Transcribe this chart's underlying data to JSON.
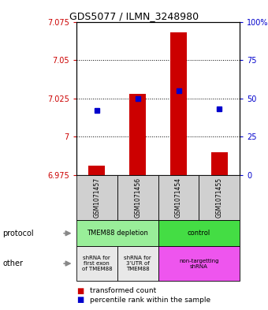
{
  "title": "GDS5077 / ILMN_3248980",
  "samples": [
    "GSM1071457",
    "GSM1071456",
    "GSM1071454",
    "GSM1071455"
  ],
  "red_values": [
    6.981,
    7.028,
    7.068,
    6.99
  ],
  "red_base": 6.975,
  "blue_values": [
    42,
    50,
    55,
    43
  ],
  "ylim": [
    6.975,
    7.075
  ],
  "yticks": [
    6.975,
    7.0,
    7.025,
    7.05,
    7.075
  ],
  "ytick_labels": [
    "6.975",
    "7",
    "7.025",
    "7.05",
    "7.075"
  ],
  "y2ticks": [
    0,
    25,
    50,
    75,
    100
  ],
  "y2tick_labels": [
    "0",
    "25",
    "50",
    "75",
    "100%"
  ],
  "red_color": "#cc0000",
  "blue_color": "#0000cc",
  "grid_dotted_at": [
    7.0,
    7.025,
    7.05
  ],
  "protocol_groups": [
    {
      "start": 0,
      "end": 2,
      "color": "#99ee99",
      "label": "TMEM88 depletion"
    },
    {
      "start": 2,
      "end": 4,
      "color": "#44dd44",
      "label": "control"
    }
  ],
  "other_groups": [
    {
      "start": 0,
      "end": 1,
      "color": "#e8e8e8",
      "label": "shRNA for\nfirst exon\nof TMEM88"
    },
    {
      "start": 1,
      "end": 2,
      "color": "#e8e8e8",
      "label": "shRNA for\n3’UTR of\nTMEM88"
    },
    {
      "start": 2,
      "end": 4,
      "color": "#ee55ee",
      "label": "non-targetting\nshRNA"
    }
  ],
  "sample_bg": "#d0d0d0",
  "legend_red_label": "transformed count",
  "legend_blue_label": "percentile rank within the sample"
}
